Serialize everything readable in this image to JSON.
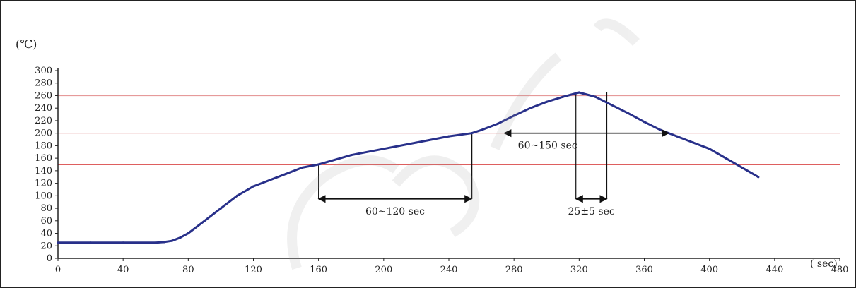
{
  "chart_data": {
    "type": "line",
    "unit_label": "(℃)",
    "x_unit_label": "( sec)",
    "x_ticks": [
      "0",
      "40",
      "80",
      "120",
      "160",
      "200",
      "240",
      "280",
      "320",
      "360",
      "400",
      "440",
      "480"
    ],
    "y_ticks": [
      "0",
      "20",
      "40",
      "60",
      "80",
      "100",
      "120",
      "140",
      "160",
      "180",
      "200",
      "220",
      "240",
      "260",
      "280",
      "300"
    ],
    "xlim": [
      0,
      480
    ],
    "ylim": [
      0,
      300
    ],
    "grid": false,
    "reference_lines": [
      {
        "y": 150,
        "color": "#d42a2a"
      },
      {
        "y": 200,
        "color": "#e69a9a"
      },
      {
        "y": 260,
        "color": "#e69a9a"
      }
    ],
    "series": [
      {
        "color": "#28308a",
        "points": [
          [
            0,
            25
          ],
          [
            20,
            25
          ],
          [
            40,
            25
          ],
          [
            60,
            25
          ],
          [
            65,
            26
          ],
          [
            70,
            28
          ],
          [
            75,
            33
          ],
          [
            80,
            40
          ],
          [
            90,
            60
          ],
          [
            100,
            80
          ],
          [
            110,
            100
          ],
          [
            120,
            115
          ],
          [
            130,
            125
          ],
          [
            140,
            135
          ],
          [
            150,
            145
          ],
          [
            160,
            150
          ],
          [
            180,
            165
          ],
          [
            200,
            175
          ],
          [
            220,
            185
          ],
          [
            240,
            195
          ],
          [
            254,
            200
          ],
          [
            260,
            205
          ],
          [
            270,
            215
          ],
          [
            280,
            228
          ],
          [
            290,
            240
          ],
          [
            300,
            250
          ],
          [
            310,
            258
          ],
          [
            320,
            265
          ],
          [
            330,
            258
          ],
          [
            340,
            245
          ],
          [
            350,
            232
          ],
          [
            360,
            218
          ],
          [
            370,
            205
          ],
          [
            380,
            195
          ],
          [
            390,
            185
          ],
          [
            400,
            175
          ],
          [
            410,
            160
          ],
          [
            420,
            145
          ],
          [
            430,
            130
          ]
        ]
      }
    ],
    "annotations": [
      {
        "text": "60~120 sec",
        "x_from": 160,
        "x_to": 254,
        "y": 95
      },
      {
        "text": "60~150 sec",
        "x_from": 274,
        "x_to": 375,
        "y": 200
      },
      {
        "text": "25±5 sec",
        "x_from": 318,
        "x_to": 337,
        "y": 95
      }
    ],
    "guide_lines": [
      {
        "x": 160,
        "y_from": 95,
        "y_to": 150
      },
      {
        "x": 254,
        "y_from": 95,
        "y_to": 200
      },
      {
        "x": 318,
        "y_from": 95,
        "y_to": 265
      },
      {
        "x": 337,
        "y_from": 95,
        "y_to": 265
      }
    ]
  }
}
